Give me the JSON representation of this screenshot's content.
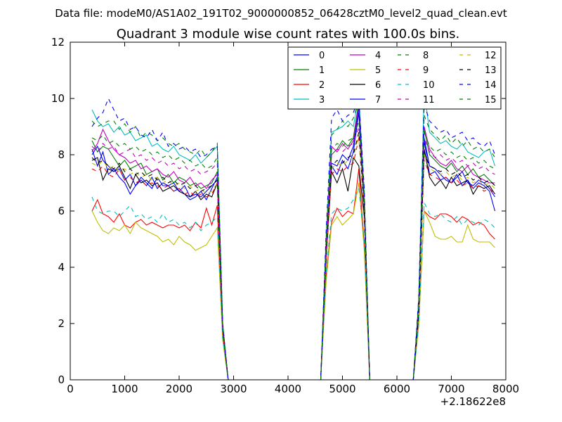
{
  "chart_data": {
    "type": "line",
    "suptitle": "Data file: modeM0/AS1A02_191T02_9000000852_06428cztM0_level2_quad_clean.evt",
    "title": "Quadrant 3 module wise count rates with 100.0s bins.",
    "xlabel": "",
    "ylabel": "",
    "x_offset_label": "+2.18622e8",
    "xlim": [
      0,
      8000
    ],
    "ylim": [
      0,
      12
    ],
    "xticks": [
      0,
      1000,
      2000,
      3000,
      4000,
      5000,
      6000,
      7000,
      8000
    ],
    "yticks": [
      0,
      2,
      4,
      6,
      8,
      10,
      12
    ],
    "legend_position": "top-right",
    "legend_columns": 4,
    "x": [
      400,
      500,
      600,
      700,
      800,
      900,
      1000,
      1100,
      1200,
      1300,
      1400,
      1500,
      1600,
      1700,
      1800,
      1900,
      2000,
      2100,
      2200,
      2300,
      2400,
      2500,
      2600,
      2700,
      2800,
      2900,
      3000,
      4600,
      4700,
      4800,
      4900,
      5000,
      5100,
      5200,
      5300,
      5400,
      5500,
      6300,
      6400,
      6500,
      6600,
      6700,
      6800,
      6900,
      7000,
      7100,
      7200,
      7300,
      7400,
      7500,
      7600,
      7700,
      7800
    ],
    "series": [
      {
        "name": "0",
        "color": "#0000ff",
        "dash": "solid",
        "values": [
          8.2,
          7.6,
          8.1,
          7.3,
          7.5,
          7.2,
          7.0,
          6.6,
          6.9,
          7.1,
          6.9,
          7.2,
          6.8,
          7.0,
          6.9,
          6.7,
          6.8,
          6.6,
          6.4,
          6.5,
          6.7,
          6.4,
          6.8,
          7.2,
          1.8,
          0,
          0,
          0,
          4.6,
          7.7,
          7.6,
          8.0,
          7.8,
          8.3,
          9.7,
          6.0,
          0,
          0,
          2.5,
          8.6,
          7.6,
          7.5,
          7.3,
          7.1,
          7.0,
          7.2,
          7.4,
          7.0,
          6.9,
          7.1,
          7.0,
          6.8,
          6.5
        ]
      },
      {
        "name": "1",
        "color": "#008000",
        "dash": "solid",
        "values": [
          8.5,
          8.1,
          8.3,
          8.2,
          7.9,
          7.6,
          7.8,
          7.5,
          7.6,
          7.7,
          7.3,
          7.4,
          7.5,
          7.1,
          7.3,
          7.0,
          7.2,
          7.1,
          6.9,
          7.0,
          6.8,
          6.9,
          7.0,
          7.4,
          1.9,
          0,
          0,
          0,
          4.8,
          8.0,
          8.2,
          8.5,
          8.3,
          8.6,
          9.9,
          6.2,
          0,
          0,
          2.6,
          8.9,
          8.0,
          7.8,
          7.6,
          7.5,
          7.7,
          7.4,
          7.6,
          7.3,
          7.5,
          7.2,
          7.3,
          7.1,
          6.9
        ]
      },
      {
        "name": "2",
        "color": "#ff0000",
        "dash": "solid",
        "values": [
          6.0,
          6.4,
          5.9,
          5.8,
          5.6,
          5.9,
          5.5,
          5.4,
          5.6,
          5.7,
          5.5,
          5.6,
          5.5,
          5.4,
          5.5,
          5.5,
          5.4,
          5.5,
          5.3,
          5.6,
          5.4,
          6.1,
          5.5,
          6.2,
          1.5,
          0,
          0,
          0,
          3.7,
          5.6,
          6.1,
          5.8,
          6.0,
          5.9,
          7.5,
          4.8,
          0,
          0,
          2.0,
          6.0,
          5.8,
          5.7,
          5.9,
          5.9,
          5.8,
          5.6,
          5.8,
          5.7,
          5.5,
          5.6,
          5.5,
          5.2,
          5.0
        ]
      },
      {
        "name": "3",
        "color": "#00bfbf",
        "dash": "solid",
        "values": [
          9.6,
          9.2,
          9.0,
          9.1,
          8.8,
          9.0,
          8.7,
          8.8,
          8.5,
          8.6,
          8.7,
          8.3,
          8.4,
          8.2,
          8.1,
          8.3,
          8.0,
          7.9,
          7.8,
          8.0,
          7.7,
          7.9,
          8.1,
          8.3,
          2.0,
          0,
          0,
          0,
          5.0,
          8.8,
          8.9,
          9.0,
          9.2,
          9.0,
          10.1,
          6.6,
          0,
          0,
          2.8,
          10.3,
          8.8,
          8.6,
          8.4,
          8.5,
          8.3,
          8.2,
          8.4,
          8.1,
          8.0,
          7.9,
          8.1,
          8.2,
          7.6
        ]
      },
      {
        "name": "4",
        "color": "#bf00bf",
        "dash": "solid",
        "values": [
          8.1,
          8.4,
          8.9,
          8.5,
          8.2,
          8.0,
          7.9,
          7.7,
          7.8,
          7.5,
          7.6,
          7.4,
          7.5,
          7.3,
          7.2,
          7.4,
          7.1,
          7.0,
          7.2,
          6.9,
          7.0,
          6.8,
          7.1,
          7.3,
          1.9,
          0,
          0,
          0,
          4.7,
          8.3,
          8.1,
          8.4,
          8.2,
          8.5,
          9.8,
          6.3,
          0,
          0,
          2.6,
          9.0,
          8.2,
          7.9,
          7.7,
          7.6,
          7.8,
          7.5,
          7.4,
          7.6,
          7.3,
          7.2,
          7.1,
          7.0,
          7.0
        ]
      },
      {
        "name": "5",
        "color": "#bfbf00",
        "dash": "solid",
        "values": [
          6.0,
          5.6,
          5.3,
          5.2,
          5.4,
          5.3,
          5.5,
          5.2,
          5.6,
          5.4,
          5.3,
          5.2,
          5.1,
          4.9,
          5.0,
          4.8,
          5.1,
          4.9,
          4.8,
          4.6,
          4.7,
          4.8,
          5.1,
          5.4,
          1.4,
          0,
          0,
          0,
          3.5,
          5.5,
          5.8,
          5.5,
          5.7,
          5.9,
          7.0,
          4.6,
          0,
          0,
          1.9,
          6.0,
          5.6,
          5.1,
          5.0,
          5.0,
          5.1,
          4.9,
          4.9,
          5.5,
          5.0,
          4.9,
          4.9,
          4.9,
          4.7
        ]
      },
      {
        "name": "6",
        "color": "#000000",
        "dash": "solid",
        "values": [
          7.8,
          7.9,
          7.1,
          7.5,
          7.4,
          7.6,
          7.2,
          6.8,
          7.3,
          7.0,
          7.1,
          6.9,
          7.0,
          6.7,
          6.8,
          6.9,
          6.7,
          6.6,
          6.5,
          6.7,
          6.4,
          6.6,
          6.5,
          7.0,
          1.7,
          0,
          0,
          0,
          4.3,
          7.4,
          7.0,
          7.5,
          6.7,
          7.9,
          7.6,
          5.8,
          0,
          0,
          2.3,
          8.2,
          7.2,
          6.9,
          7.1,
          6.8,
          7.2,
          6.9,
          7.0,
          7.1,
          6.6,
          6.9,
          6.8,
          6.9,
          6.6
        ]
      },
      {
        "name": "7",
        "color": "#0000ff",
        "dash": "solid",
        "values": [
          8.0,
          8.3,
          7.8,
          7.6,
          7.4,
          7.5,
          7.1,
          7.3,
          6.9,
          7.2,
          7.0,
          6.8,
          7.2,
          6.9,
          6.9,
          7.0,
          6.7,
          6.9,
          6.5,
          6.6,
          6.5,
          6.7,
          6.9,
          7.1,
          1.8,
          0,
          0,
          0,
          4.4,
          7.6,
          7.3,
          7.8,
          7.5,
          8.1,
          9.5,
          6.0,
          0,
          0,
          2.4,
          8.5,
          7.3,
          7.4,
          7.1,
          7.2,
          7.0,
          7.3,
          6.9,
          7.1,
          6.8,
          7.0,
          6.9,
          6.7,
          6.0
        ]
      },
      {
        "name": "8",
        "color": "#008000",
        "dash": "dashed",
        "values": [
          9.2,
          9.0,
          9.1,
          9.2,
          9.2,
          8.9,
          9.1,
          8.8,
          9.0,
          8.6,
          8.8,
          8.7,
          8.5,
          8.6,
          8.4,
          8.3,
          8.4,
          8.2,
          8.1,
          8.0,
          8.2,
          7.9,
          8.1,
          8.4,
          2.0,
          0,
          0,
          0,
          5.1,
          8.7,
          8.9,
          9.2,
          9.0,
          9.3,
          9.9,
          6.7,
          0,
          0,
          2.8,
          9.4,
          8.9,
          8.7,
          8.5,
          8.7,
          8.4,
          8.6,
          8.3,
          8.5,
          8.2,
          8.3,
          8.1,
          8.2,
          7.9
        ]
      },
      {
        "name": "9",
        "color": "#ff0000",
        "dash": "dashed",
        "values": [
          7.5,
          7.4,
          7.6,
          7.3,
          7.2,
          7.5,
          7.1,
          7.2,
          7.0,
          7.1,
          6.9,
          7.0,
          6.9,
          6.8,
          6.9,
          6.7,
          6.8,
          6.6,
          6.7,
          6.5,
          6.6,
          6.5,
          6.6,
          7.0,
          1.7,
          0,
          0,
          0,
          4.3,
          7.3,
          7.5,
          7.4,
          7.6,
          7.7,
          8.6,
          5.9,
          0,
          0,
          2.3,
          7.8,
          7.3,
          7.2,
          7.1,
          7.2,
          7.0,
          7.1,
          6.9,
          7.0,
          6.8,
          6.9,
          6.7,
          6.8,
          6.6
        ]
      },
      {
        "name": "10",
        "color": "#00bfbf",
        "dash": "dashed",
        "values": [
          6.5,
          6.0,
          5.9,
          6.0,
          6.0,
          5.8,
          6.0,
          6.2,
          5.8,
          5.9,
          5.7,
          5.8,
          5.6,
          5.9,
          5.6,
          5.7,
          5.5,
          5.6,
          5.4,
          5.6,
          5.3,
          5.5,
          5.6,
          5.8,
          1.5,
          0,
          0,
          0,
          3.8,
          5.9,
          6.1,
          6.0,
          6.1,
          6.4,
          6.8,
          4.9,
          0,
          0,
          2.0,
          6.3,
          5.9,
          5.8,
          5.9,
          5.7,
          5.6,
          5.8,
          5.5,
          5.7,
          5.6,
          5.5,
          5.7,
          5.6,
          5.4
        ]
      },
      {
        "name": "11",
        "color": "#bf00bf",
        "dash": "dashed",
        "values": [
          8.3,
          8.1,
          8.4,
          8.2,
          8.3,
          8.0,
          8.1,
          8.2,
          7.9,
          8.0,
          7.8,
          7.9,
          7.7,
          7.8,
          7.6,
          7.7,
          7.5,
          7.6,
          7.4,
          7.5,
          7.3,
          7.4,
          7.5,
          7.7,
          1.9,
          0,
          0,
          0,
          4.7,
          8.0,
          8.2,
          8.1,
          8.3,
          8.4,
          9.0,
          6.3,
          0,
          0,
          2.6,
          8.6,
          8.1,
          7.9,
          8.0,
          7.8,
          7.9,
          7.7,
          7.8,
          7.6,
          7.7,
          7.5,
          7.6,
          7.4,
          7.3
        ]
      },
      {
        "name": "12",
        "color": "#bfbf00",
        "dash": "dashed",
        "values": [
          7.7,
          7.6,
          7.8,
          7.5,
          7.6,
          7.4,
          7.5,
          7.3,
          7.4,
          7.2,
          7.3,
          7.1,
          7.2,
          7.0,
          7.1,
          6.9,
          7.0,
          6.8,
          6.9,
          6.7,
          6.8,
          6.6,
          6.7,
          7.0,
          1.8,
          0,
          0,
          0,
          4.4,
          7.5,
          7.7,
          7.6,
          7.8,
          7.9,
          8.7,
          6.0,
          0,
          0,
          2.4,
          8.0,
          7.5,
          7.4,
          7.3,
          7.4,
          7.2,
          7.3,
          7.1,
          7.2,
          7.0,
          7.1,
          6.9,
          7.0,
          6.8
        ]
      },
      {
        "name": "13",
        "color": "#000000",
        "dash": "dashed",
        "values": [
          7.9,
          7.7,
          7.8,
          7.6,
          7.5,
          7.7,
          7.4,
          7.5,
          7.3,
          7.4,
          7.2,
          7.3,
          7.1,
          7.2,
          7.0,
          7.1,
          6.9,
          7.0,
          6.8,
          6.9,
          6.7,
          6.8,
          6.9,
          7.1,
          1.8,
          0,
          0,
          0,
          4.5,
          7.6,
          7.8,
          7.7,
          7.9,
          8.0,
          8.8,
          6.1,
          0,
          0,
          2.4,
          8.1,
          7.6,
          7.5,
          7.4,
          7.5,
          7.3,
          7.4,
          7.2,
          7.3,
          7.1,
          7.2,
          7.0,
          7.1,
          6.9
        ]
      },
      {
        "name": "14",
        "color": "#0000ff",
        "dash": "dashed",
        "values": [
          9.0,
          9.3,
          9.5,
          10.0,
          9.6,
          9.2,
          9.3,
          8.9,
          9.0,
          8.7,
          8.6,
          8.9,
          8.5,
          8.8,
          8.3,
          8.4,
          8.2,
          8.3,
          8.1,
          8.2,
          7.9,
          8.0,
          8.2,
          8.3,
          2.0,
          0,
          0,
          0,
          5.3,
          9.3,
          9.6,
          9.2,
          9.4,
          9.5,
          10.0,
          6.8,
          0,
          0,
          2.9,
          9.8,
          9.2,
          9.0,
          8.8,
          8.9,
          8.6,
          8.7,
          8.8,
          8.5,
          8.6,
          8.4,
          8.3,
          8.5,
          8.0
        ]
      },
      {
        "name": "15",
        "color": "#008000",
        "dash": "dashed",
        "values": [
          8.6,
          8.5,
          8.7,
          8.4,
          8.5,
          8.3,
          8.4,
          8.2,
          8.3,
          8.1,
          8.2,
          8.0,
          8.1,
          7.9,
          8.0,
          7.8,
          7.9,
          7.7,
          7.8,
          7.6,
          7.7,
          7.5,
          7.6,
          7.9,
          1.9,
          0,
          0,
          0,
          4.8,
          8.2,
          8.4,
          8.3,
          8.5,
          8.6,
          9.2,
          6.4,
          0,
          0,
          2.7,
          8.8,
          8.3,
          8.1,
          8.2,
          8.0,
          8.1,
          7.9,
          8.0,
          7.8,
          7.9,
          7.7,
          7.8,
          7.6,
          7.5
        ]
      }
    ]
  }
}
